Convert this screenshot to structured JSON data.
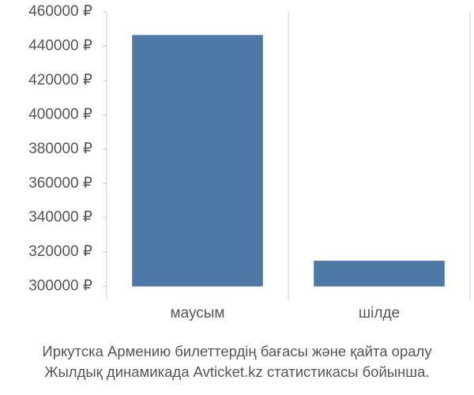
{
  "chart_data": {
    "type": "bar",
    "categories": [
      "маусым",
      "шілде"
    ],
    "values": [
      446500,
      315000
    ],
    "color": "#4e79a7",
    "ylim": [
      292000,
      460000
    ],
    "yticks": [
      {
        "value": 300000,
        "label": "300000 ₽"
      },
      {
        "value": 320000,
        "label": "320000 ₽"
      },
      {
        "value": 340000,
        "label": "340000 ₽"
      },
      {
        "value": 360000,
        "label": "360000 ₽"
      },
      {
        "value": 380000,
        "label": "380000 ₽"
      },
      {
        "value": 400000,
        "label": "400000 ₽"
      },
      {
        "value": 420000,
        "label": "420000 ₽"
      },
      {
        "value": 440000,
        "label": "440000 ₽"
      },
      {
        "value": 460000,
        "label": "460000 ₽"
      }
    ],
    "caption": [
      "Иркутска Армению билеттердің бағасы және қайта оралу",
      "Жылдық динамикада Avticket.kz статистикасы бойынша."
    ]
  }
}
